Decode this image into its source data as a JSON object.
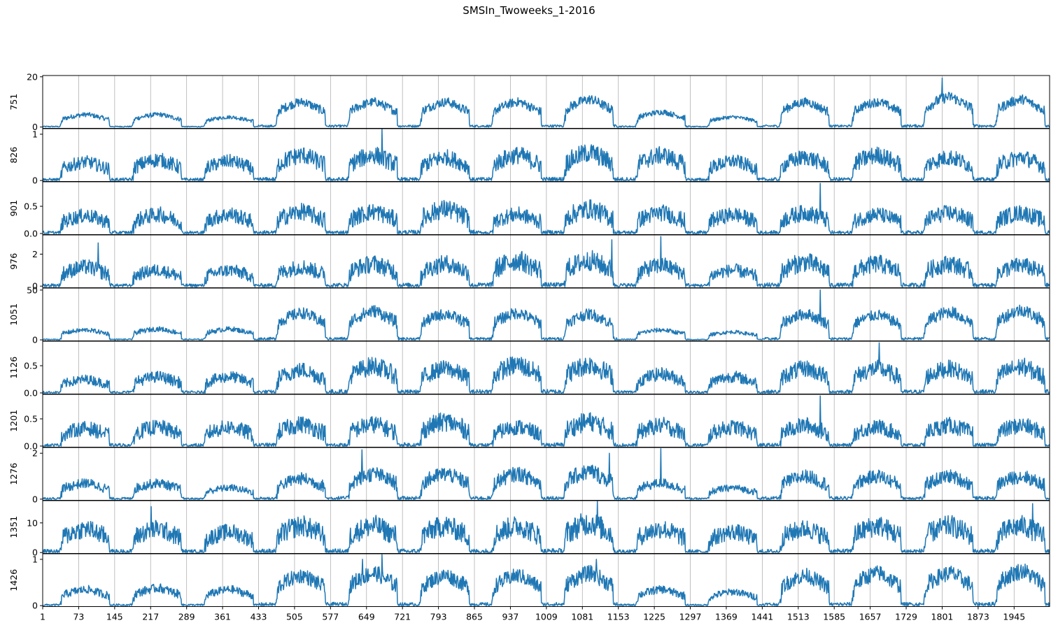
{
  "chart_data": {
    "type": "line",
    "title": "SMSIn_Twoweeks_1-2016",
    "x_range": [
      1,
      2016
    ],
    "x_ticks": [
      1,
      73,
      145,
      217,
      289,
      361,
      433,
      505,
      577,
      649,
      721,
      793,
      865,
      937,
      1009,
      1081,
      1153,
      1225,
      1297,
      1369,
      1441,
      1513,
      1585,
      1657,
      1729,
      1801,
      1873,
      1945
    ],
    "vertical_grid": true,
    "line_color": "#1f77b4",
    "days": 14,
    "points_per_day": 144,
    "panels": [
      {
        "label": "751",
        "ylim": [
          -0.5,
          20.5
        ],
        "yticks": [
          "0",
          "20"
        ],
        "ytick_values": [
          0,
          20
        ],
        "daily_peak": [
          5,
          5,
          4,
          10,
          10,
          10,
          10,
          11,
          6,
          4,
          10,
          10,
          12,
          11
        ],
        "noise": 0.18,
        "spikes": [
          [
            1801,
            19.5
          ]
        ]
      },
      {
        "label": "826",
        "ylim": [
          -0.02,
          1.12
        ],
        "yticks": [
          "0",
          "1"
        ],
        "ytick_values": [
          0,
          1
        ],
        "daily_peak": [
          0.4,
          0.45,
          0.42,
          0.55,
          0.55,
          0.5,
          0.55,
          0.6,
          0.55,
          0.42,
          0.5,
          0.55,
          0.5,
          0.5
        ],
        "noise": 0.35,
        "spikes": [
          [
            680,
            1.12
          ]
        ]
      },
      {
        "label": "901",
        "ylim": [
          -0.02,
          0.95
        ],
        "yticks": [
          "0.0",
          "0.5"
        ],
        "ytick_values": [
          0,
          0.5
        ],
        "daily_peak": [
          0.33,
          0.35,
          0.35,
          0.4,
          0.4,
          0.45,
          0.35,
          0.45,
          0.38,
          0.35,
          0.38,
          0.35,
          0.38,
          0.38
        ],
        "noise": 0.4,
        "spikes": [
          [
            1557,
            0.92
          ]
        ]
      },
      {
        "label": "976",
        "ylim": [
          -0.1,
          3.2
        ],
        "yticks": [
          "0",
          "2"
        ],
        "ytick_values": [
          0,
          2
        ],
        "daily_peak": [
          1.2,
          1.0,
          1.0,
          1.2,
          1.4,
          1.4,
          1.6,
          1.6,
          1.3,
          1.0,
          1.5,
          1.4,
          1.4,
          1.3
        ],
        "noise": 0.4,
        "spikes": [
          [
            1238,
            3.1
          ],
          [
            1140,
            2.9
          ],
          [
            112,
            2.7
          ]
        ]
      },
      {
        "label": "1051",
        "ylim": [
          -1,
          52
        ],
        "yticks": [
          "0",
          "50"
        ],
        "ytick_values": [
          0,
          50
        ],
        "daily_peak": [
          10,
          11,
          11,
          27,
          29,
          26,
          27,
          26,
          10,
          8,
          26,
          25,
          28,
          30
        ],
        "noise": 0.22,
        "spikes": [
          [
            1557,
            50
          ]
        ]
      },
      {
        "label": "1126",
        "ylim": [
          -0.02,
          0.95
        ],
        "yticks": [
          "0.0",
          "0.5"
        ],
        "ytick_values": [
          0,
          0.5
        ],
        "daily_peak": [
          0.25,
          0.3,
          0.3,
          0.42,
          0.5,
          0.45,
          0.52,
          0.52,
          0.35,
          0.3,
          0.45,
          0.45,
          0.45,
          0.48
        ],
        "noise": 0.35,
        "spikes": [
          [
            1675,
            0.92
          ]
        ]
      },
      {
        "label": "1201",
        "ylim": [
          -0.02,
          0.95
        ],
        "yticks": [
          "0.0",
          "0.5"
        ],
        "ytick_values": [
          0,
          0.5
        ],
        "daily_peak": [
          0.33,
          0.35,
          0.35,
          0.4,
          0.4,
          0.45,
          0.35,
          0.45,
          0.38,
          0.35,
          0.38,
          0.35,
          0.38,
          0.38
        ],
        "noise": 0.4,
        "spikes": [
          [
            1557,
            0.92
          ]
        ]
      },
      {
        "label": "1276",
        "ylim": [
          -0.05,
          2.25
        ],
        "yticks": [
          "0",
          "2"
        ],
        "ytick_values": [
          0,
          2
        ],
        "daily_peak": [
          0.7,
          0.7,
          0.5,
          0.9,
          1.1,
          1.1,
          1.1,
          1.2,
          0.7,
          0.5,
          1.0,
          1.0,
          1.0,
          1.0
        ],
        "noise": 0.3,
        "spikes": [
          [
            1238,
            2.2
          ],
          [
            640,
            2.15
          ],
          [
            1135,
            2.0
          ]
        ]
      },
      {
        "label": "1351",
        "ylim": [
          -0.3,
          17.5
        ],
        "yticks": [
          "0",
          "10"
        ],
        "ytick_values": [
          0,
          10
        ],
        "daily_peak": [
          8,
          8,
          7,
          9,
          9,
          9,
          9,
          10,
          8,
          7,
          8,
          9,
          9,
          9
        ],
        "noise": 0.4,
        "spikes": [
          [
            1111,
            17.2
          ],
          [
            218,
            15.5
          ],
          [
            1982,
            16.5
          ]
        ]
      },
      {
        "label": "1426",
        "ylim": [
          -0.02,
          1.12
        ],
        "yticks": [
          "0",
          "1"
        ],
        "ytick_values": [
          0,
          1
        ],
        "daily_peak": [
          0.35,
          0.38,
          0.35,
          0.65,
          0.7,
          0.65,
          0.65,
          0.7,
          0.35,
          0.3,
          0.65,
          0.7,
          0.7,
          0.75
        ],
        "noise": 0.25,
        "spikes": [
          [
            680,
            1.1
          ],
          [
            1109,
            1.0
          ],
          [
            641,
            1.0
          ]
        ]
      }
    ]
  }
}
